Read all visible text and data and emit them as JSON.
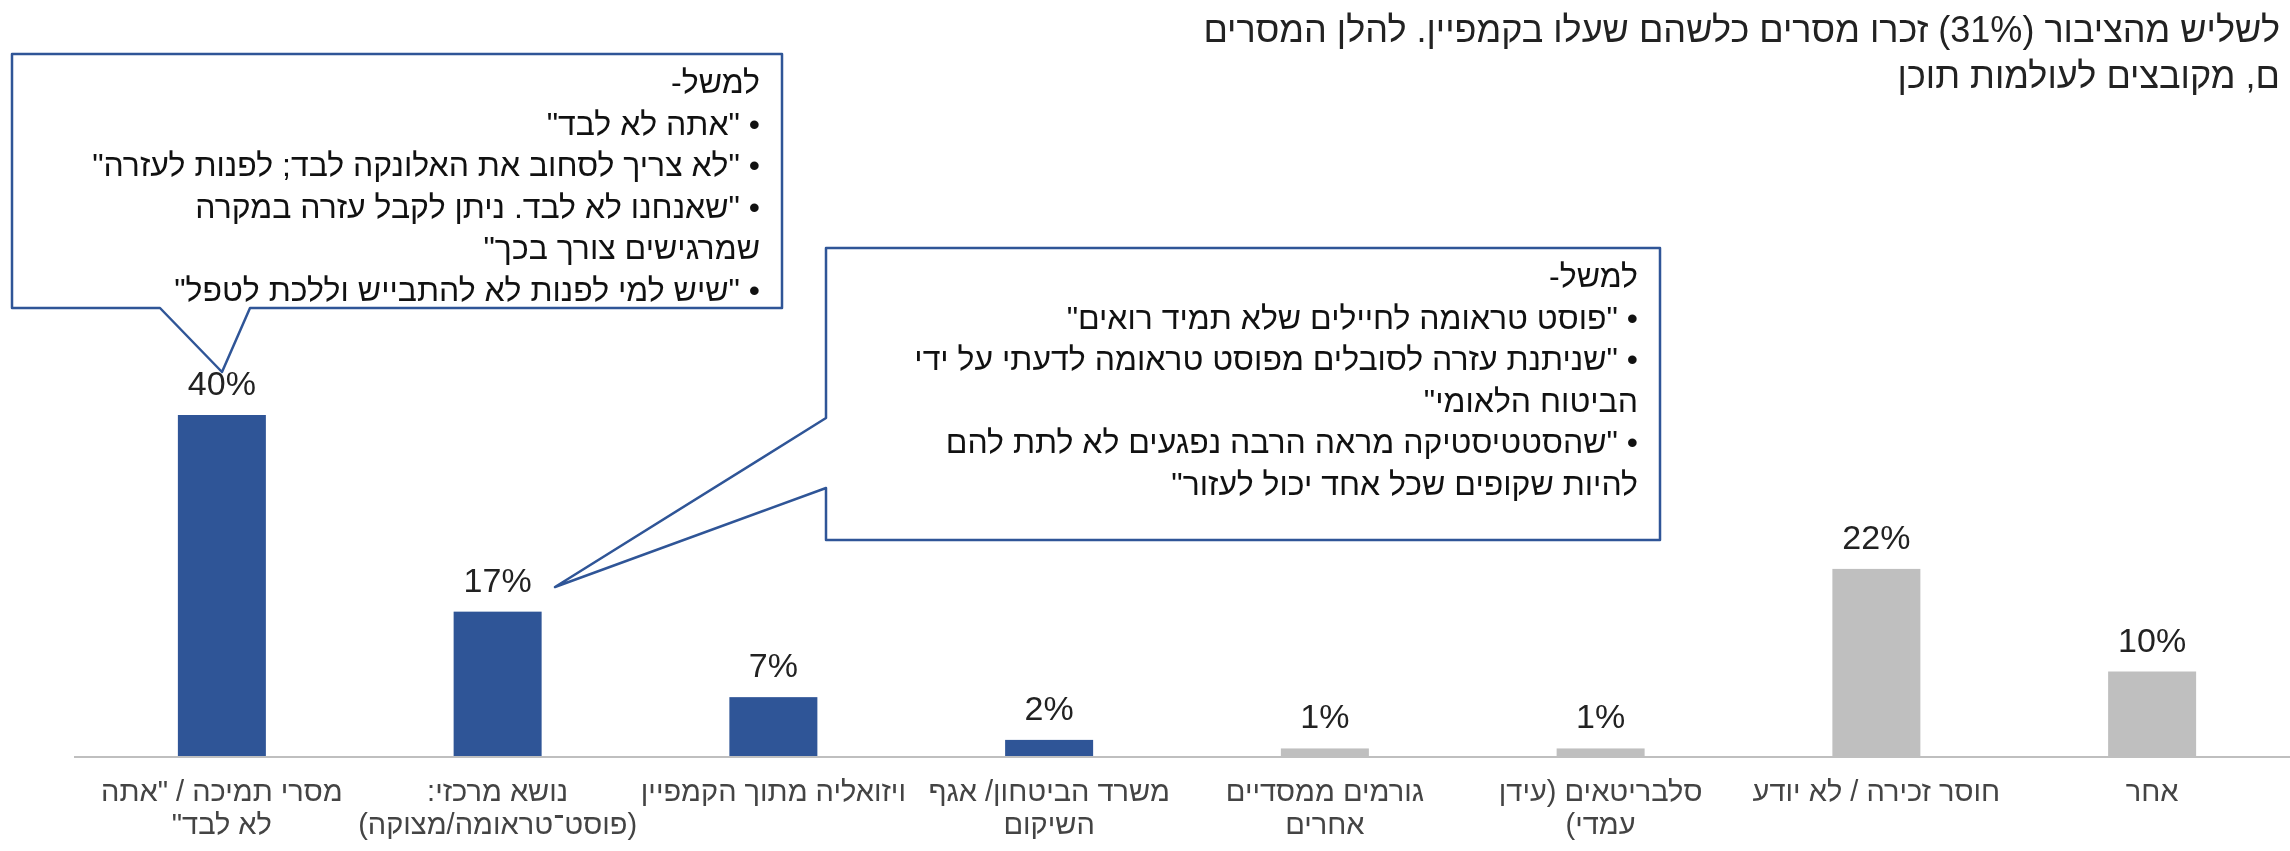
{
  "chart_data": {
    "type": "bar",
    "categories": [
      "מסרי תמיכה / \"אתה\nלא לבד\"",
      "נושא מרכזי:\n(פוסט־טראומה/מצוקה)",
      "ויזואליה מתוך הקמפיין",
      "משרד הביטחון/ אגף\nהשיקום",
      "גורמים ממסדיים\nאחרים",
      "סלבריטאים (עידן\nעמדי)",
      "חוסר זכירה / לא יודע",
      "אחר"
    ],
    "values": [
      40,
      17,
      7,
      2,
      1,
      1,
      22,
      10
    ],
    "colors": [
      "#2f5597",
      "#2f5597",
      "#2f5597",
      "#2f5597",
      "#bfbfbf",
      "#bfbfbf",
      "#bfbfbf",
      "#bfbfbf"
    ],
    "value_labels": [
      "40%",
      "17%",
      "7%",
      "2%",
      "1%",
      "1%",
      "22%",
      "10%"
    ],
    "annotations": [
      "לשליש מהציבור (31%) זכרו מסרים כלשהם שעלו בקמפיין. להלן המסרים\nם, מקובצים לעולמות תוכן",
      "למשל-\n• \"אתה לא לבד\"\n• \"לא צריך לסחוב את האלונקה לבד; לפנות לעזרה\"\n• \"שאנחנו לא לבד. ניתן לקבל עזרה במקרה\nשמרגישים צורך בכך\"\n• \"שיש למי לפנות לא להתבייש וללכת לטפל\"",
      "למשל-\n• \"פוסט טראומה לחיילים שלא תמיד רואים\"\n• \"שניתנת עזרה לסובלים מפוסט טראומה לדעתי על ידי\nהביטוח הלאומי\"\n• \"שהסטטיסטיקה מראה הרבה נפגעים לא לתת להם\nלהיות שקופים שכל אחד יכול לעזור\""
    ]
  }
}
